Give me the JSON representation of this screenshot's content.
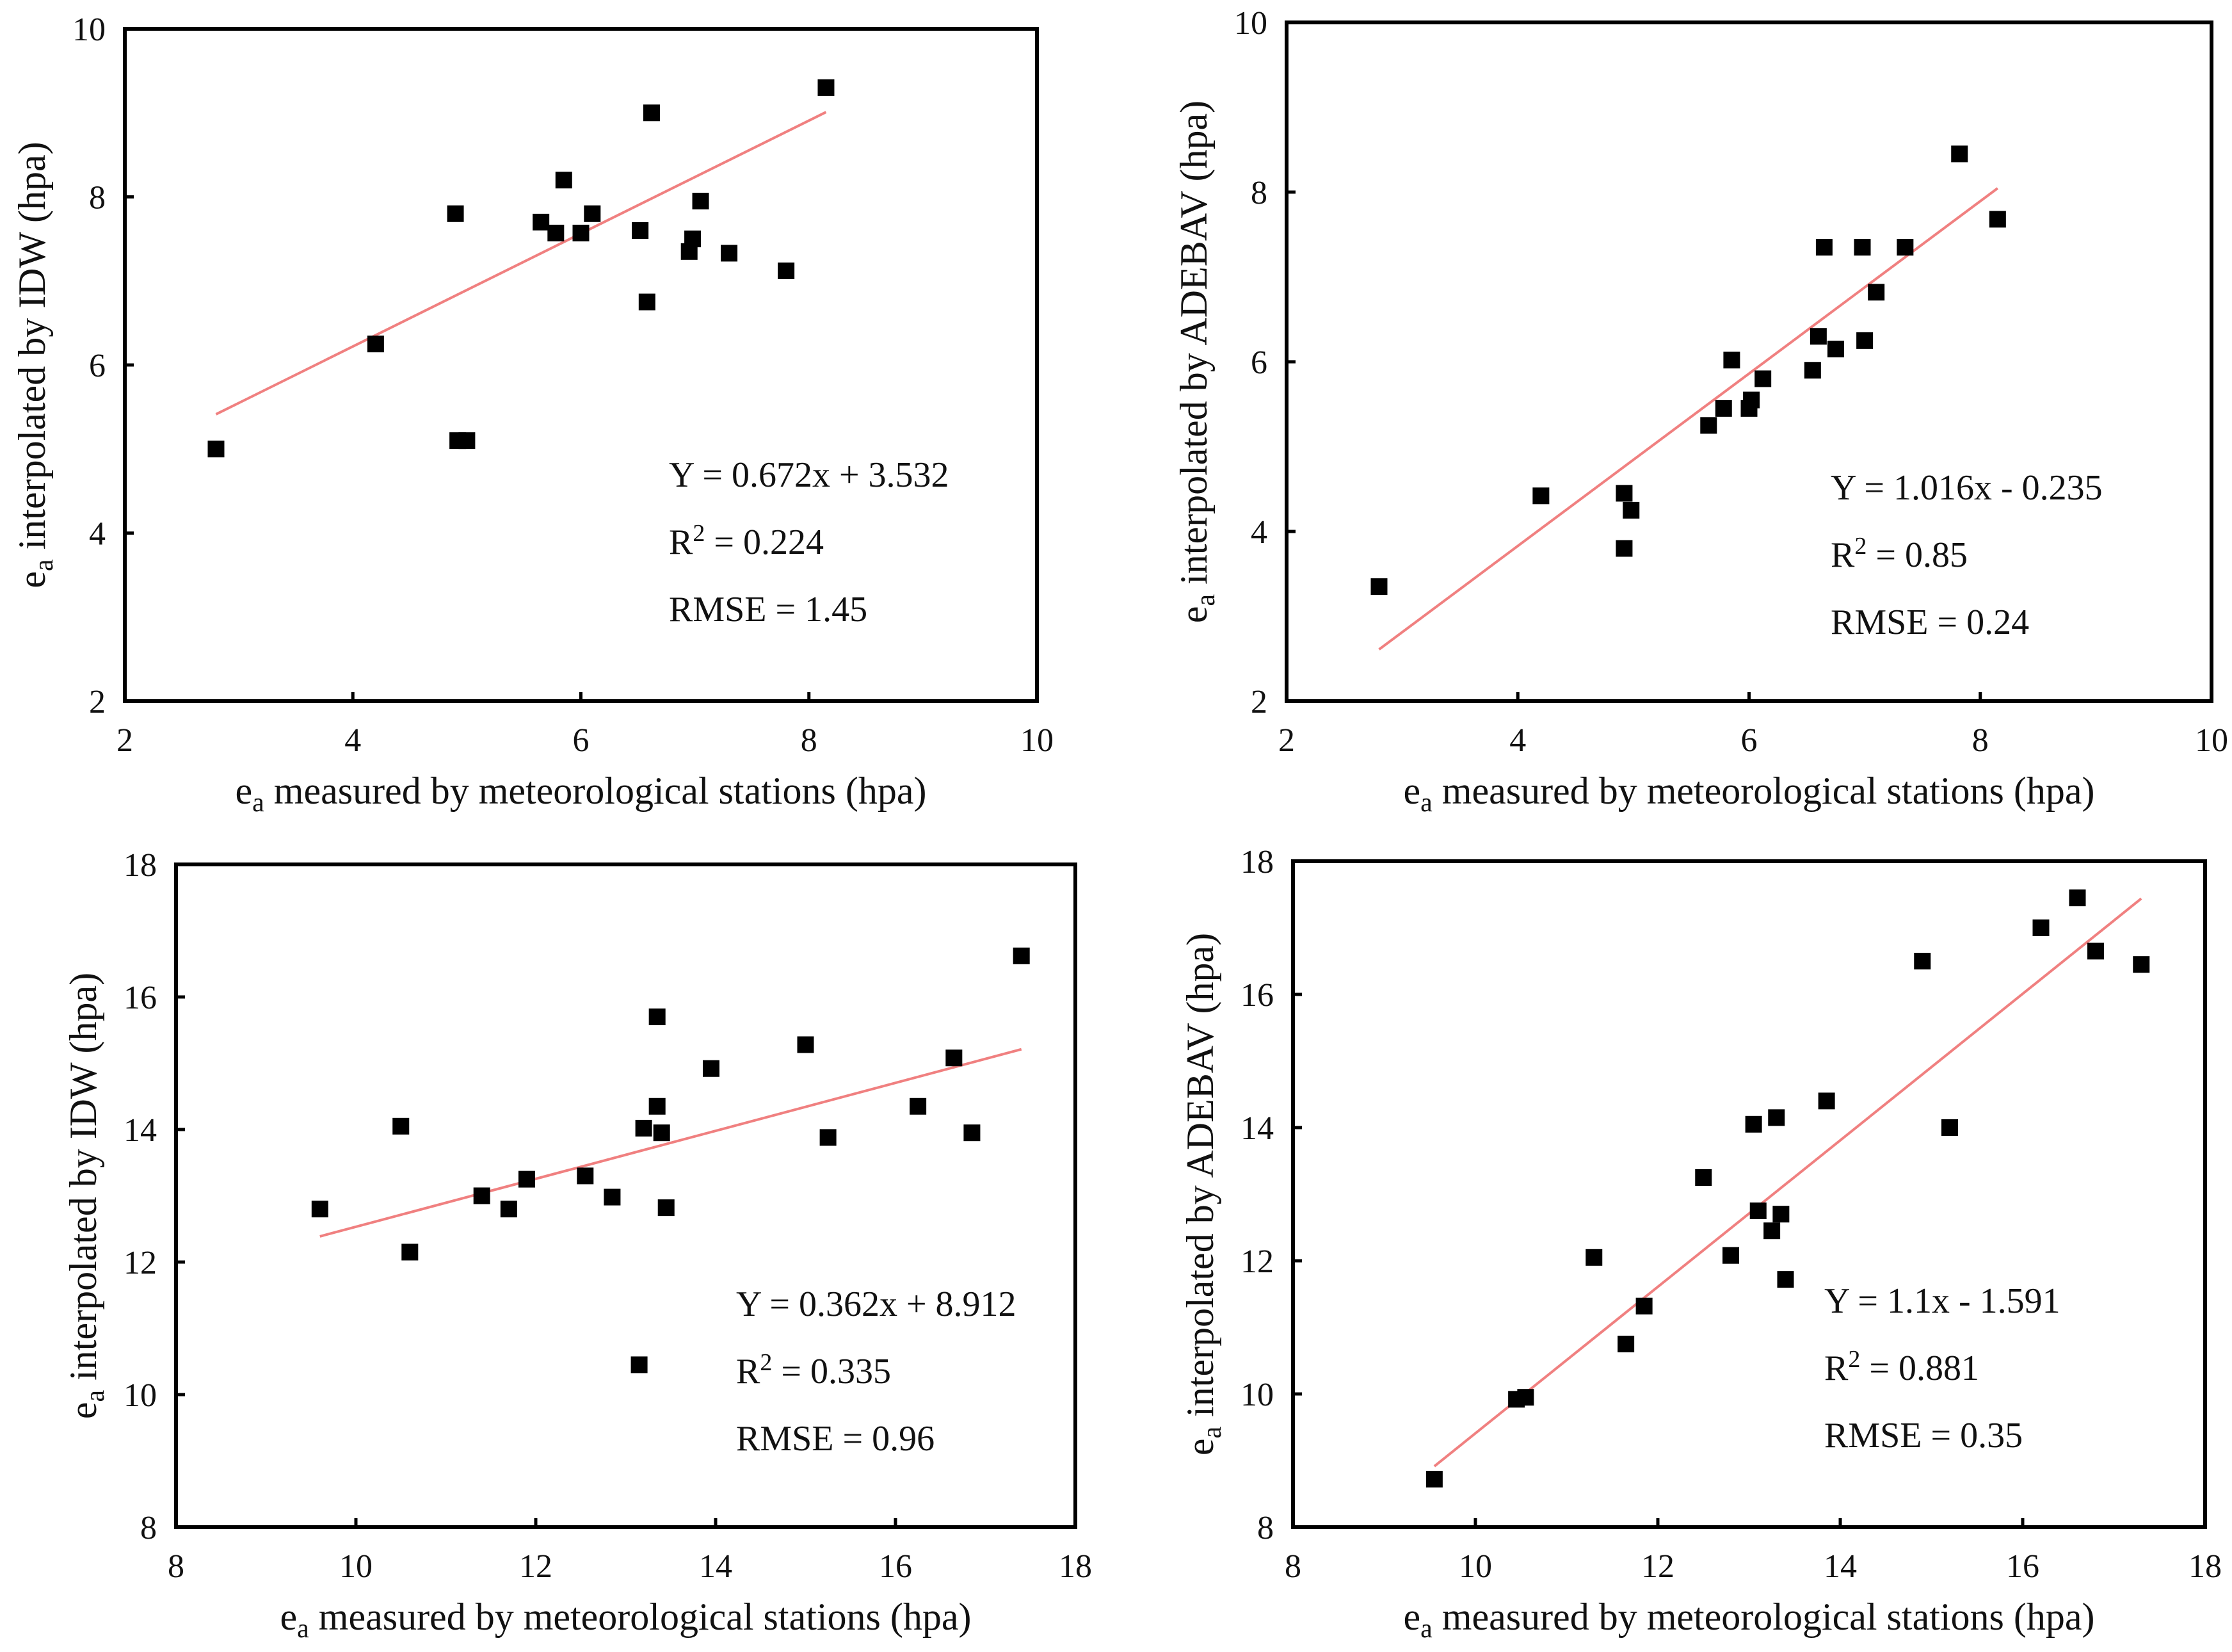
{
  "colors": {
    "marker": "#000000",
    "trend_line": "#f08080",
    "frame": "#000000",
    "background": "#ffffff"
  },
  "chart_data": [
    {
      "type": "scatter",
      "xlabel": {
        "base": "e",
        "sub": "a",
        "rest": " measured by meteorological stations (hpa)"
      },
      "ylabel": {
        "base": "e",
        "sub": "a",
        "rest": " interpolated by IDW (hpa)"
      },
      "xlim": [
        2,
        10
      ],
      "ylim": [
        2,
        10
      ],
      "xticks": [
        "2",
        "4",
        "6",
        "8",
        "10"
      ],
      "yticks": [
        "2",
        "4",
        "6",
        "8",
        "10"
      ],
      "grid": false,
      "points": [
        [
          2.8,
          5.0
        ],
        [
          4.2,
          6.25
        ],
        [
          4.9,
          7.8
        ],
        [
          4.92,
          5.1
        ],
        [
          5.0,
          5.1
        ],
        [
          5.65,
          7.7
        ],
        [
          5.78,
          7.57
        ],
        [
          5.85,
          8.2
        ],
        [
          6.0,
          7.57
        ],
        [
          6.1,
          7.8
        ],
        [
          6.52,
          7.6
        ],
        [
          6.58,
          6.75
        ],
        [
          6.62,
          9.0
        ],
        [
          6.95,
          7.35
        ],
        [
          6.98,
          7.5
        ],
        [
          7.05,
          7.95
        ],
        [
          7.3,
          7.33
        ],
        [
          7.8,
          7.12
        ],
        [
          8.15,
          9.3
        ]
      ],
      "trend": {
        "slope": 0.672,
        "intercept": 3.532,
        "x_range": [
          2.8,
          8.15
        ]
      },
      "annotations": {
        "equation": "Y = 0.672x + 3.532",
        "r2_label": "R",
        "r2_sup": "2",
        "r2_value": " = 0.224",
        "rmse": "RMSE = 1.45"
      }
    },
    {
      "type": "scatter",
      "xlabel": {
        "base": "e",
        "sub": "a",
        "rest": " measured by meteorological stations (hpa)"
      },
      "ylabel": {
        "base": "e",
        "sub": "a",
        "rest": " interpolated by ADEBAV (hpa)"
      },
      "xlim": [
        2,
        10
      ],
      "ylim": [
        2,
        10
      ],
      "xticks": [
        "2",
        "4",
        "6",
        "8",
        "10"
      ],
      "yticks": [
        "2",
        "4",
        "6",
        "8",
        "10"
      ],
      "grid": false,
      "points": [
        [
          2.8,
          3.35
        ],
        [
          4.2,
          4.42
        ],
        [
          4.92,
          4.45
        ],
        [
          4.92,
          3.8
        ],
        [
          4.98,
          4.25
        ],
        [
          5.65,
          5.25
        ],
        [
          5.78,
          5.45
        ],
        [
          5.85,
          6.02
        ],
        [
          6.0,
          5.45
        ],
        [
          6.02,
          5.55
        ],
        [
          6.12,
          5.8
        ],
        [
          6.55,
          5.9
        ],
        [
          6.6,
          6.3
        ],
        [
          6.65,
          7.35
        ],
        [
          6.75,
          6.15
        ],
        [
          6.98,
          7.35
        ],
        [
          7.0,
          6.25
        ],
        [
          7.1,
          6.82
        ],
        [
          7.35,
          7.35
        ],
        [
          7.82,
          8.45
        ],
        [
          8.15,
          7.68
        ]
      ],
      "trend": {
        "slope": 1.016,
        "intercept": -0.235,
        "x_range": [
          2.8,
          8.15
        ]
      },
      "annotations": {
        "equation": "Y = 1.016x - 0.235",
        "r2_label": "R",
        "r2_sup": "2",
        "r2_value": " = 0.85",
        "rmse": "RMSE = 0.24"
      }
    },
    {
      "type": "scatter",
      "xlabel": {
        "base": "e",
        "sub": "a",
        "rest": " measured by meteorological stations (hpa)"
      },
      "ylabel": {
        "base": "e",
        "sub": "a",
        "rest": " interpolated by IDW (hpa)"
      },
      "xlim": [
        8,
        18
      ],
      "ylim": [
        8,
        18
      ],
      "xticks": [
        "8",
        "10",
        "12",
        "14",
        "16",
        "18"
      ],
      "yticks": [
        "8",
        "10",
        "12",
        "14",
        "16",
        "18"
      ],
      "grid": false,
      "points": [
        [
          9.6,
          12.8
        ],
        [
          10.5,
          14.05
        ],
        [
          10.6,
          12.15
        ],
        [
          11.4,
          13.0
        ],
        [
          11.7,
          12.8
        ],
        [
          11.9,
          13.25
        ],
        [
          12.55,
          13.3
        ],
        [
          12.85,
          12.98
        ],
        [
          13.15,
          10.45
        ],
        [
          13.2,
          14.02
        ],
        [
          13.35,
          15.7
        ],
        [
          13.35,
          14.35
        ],
        [
          13.4,
          13.95
        ],
        [
          13.45,
          12.82
        ],
        [
          13.95,
          14.92
        ],
        [
          15.0,
          15.28
        ],
        [
          15.25,
          13.88
        ],
        [
          16.25,
          14.35
        ],
        [
          16.65,
          15.08
        ],
        [
          16.85,
          13.95
        ],
        [
          17.4,
          16.62
        ]
      ],
      "trend": {
        "slope": 0.362,
        "intercept": 8.912,
        "x_range": [
          9.6,
          17.4
        ]
      },
      "annotations": {
        "equation": "Y = 0.362x + 8.912",
        "r2_label": "R",
        "r2_sup": "2",
        "r2_value": " = 0.335",
        "rmse": "RMSE = 0.96"
      }
    },
    {
      "type": "scatter",
      "xlabel": {
        "base": "e",
        "sub": "a",
        "rest": " measured by meteorological stations (hpa)"
      },
      "ylabel": {
        "base": "e",
        "sub": "a",
        "rest": " interpolated by ADEBAV (hpa)"
      },
      "xlim": [
        8,
        18
      ],
      "ylim": [
        8,
        18
      ],
      "xticks": [
        "8",
        "10",
        "12",
        "14",
        "16",
        "18"
      ],
      "yticks": [
        "8",
        "10",
        "12",
        "14",
        "16",
        "18"
      ],
      "grid": false,
      "points": [
        [
          9.55,
          8.72
        ],
        [
          10.45,
          9.92
        ],
        [
          10.55,
          9.95
        ],
        [
          11.3,
          12.05
        ],
        [
          11.65,
          10.75
        ],
        [
          11.85,
          11.32
        ],
        [
          12.5,
          13.25
        ],
        [
          12.8,
          12.08
        ],
        [
          13.05,
          14.05
        ],
        [
          13.1,
          12.75
        ],
        [
          13.25,
          12.45
        ],
        [
          13.3,
          14.15
        ],
        [
          13.35,
          12.7
        ],
        [
          13.4,
          11.72
        ],
        [
          13.85,
          14.4
        ],
        [
          14.9,
          16.5
        ],
        [
          15.2,
          14.0
        ],
        [
          16.2,
          17.0
        ],
        [
          16.6,
          17.45
        ],
        [
          16.8,
          16.65
        ],
        [
          17.3,
          16.45
        ]
      ],
      "trend": {
        "slope": 1.1,
        "intercept": -1.591,
        "x_range": [
          9.55,
          17.3
        ]
      },
      "annotations": {
        "equation": "Y = 1.1x - 1.591",
        "r2_label": "R",
        "r2_sup": "2",
        "r2_value": " = 0.881",
        "rmse": "RMSE = 0.35"
      }
    }
  ]
}
